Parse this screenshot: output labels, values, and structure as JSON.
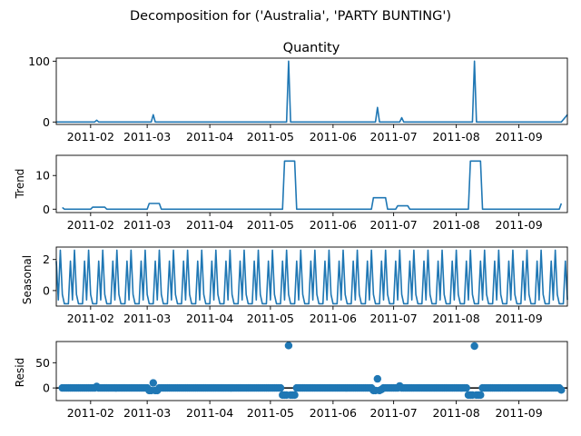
{
  "figure": {
    "suptitle": "Decomposition for ('Australia', 'PARTY BUNTING')"
  },
  "colors": {
    "line": "#1f77b4",
    "axis": "#000000",
    "background": "#ffffff"
  },
  "chart_data": [
    {
      "type": "line",
      "id": "observed",
      "title": "Quantity",
      "ylabel": "",
      "x_range": [
        0,
        253
      ],
      "ylim": [
        -4,
        105
      ],
      "yticks": [
        {
          "value": 0,
          "label": "0"
        },
        {
          "value": 100,
          "label": "100"
        }
      ],
      "x_ticks": [
        {
          "day": 17,
          "label": "2011-02"
        },
        {
          "day": 45,
          "label": "2011-03"
        },
        {
          "day": 76,
          "label": "2011-04"
        },
        {
          "day": 106,
          "label": "2011-05"
        },
        {
          "day": 137,
          "label": "2011-06"
        },
        {
          "day": 167,
          "label": "2011-07"
        },
        {
          "day": 198,
          "label": "2011-08"
        },
        {
          "day": 229,
          "label": "2011-09"
        }
      ],
      "points": [
        [
          0,
          0
        ],
        [
          19,
          0
        ],
        [
          20,
          3
        ],
        [
          21,
          0
        ],
        [
          47,
          0
        ],
        [
          48,
          12
        ],
        [
          49,
          0
        ],
        [
          114,
          0
        ],
        [
          115,
          100
        ],
        [
          116,
          0
        ],
        [
          158,
          0
        ],
        [
          159,
          24
        ],
        [
          160,
          0
        ],
        [
          170,
          0
        ],
        [
          171,
          7
        ],
        [
          172,
          0
        ],
        [
          206,
          0
        ],
        [
          207,
          100
        ],
        [
          208,
          0
        ],
        [
          250,
          0
        ],
        [
          253,
          12
        ]
      ]
    },
    {
      "type": "line",
      "id": "trend",
      "title": "",
      "ylabel": "Trend",
      "x_range": [
        0,
        253
      ],
      "ylim": [
        -1,
        16
      ],
      "yticks": [
        {
          "value": 0,
          "label": "0"
        },
        {
          "value": 10,
          "label": "10"
        }
      ],
      "x_ticks": [
        {
          "day": 17,
          "label": "2011-02"
        },
        {
          "day": 45,
          "label": "2011-03"
        },
        {
          "day": 76,
          "label": "2011-04"
        },
        {
          "day": 106,
          "label": "2011-05"
        },
        {
          "day": 137,
          "label": "2011-06"
        },
        {
          "day": 167,
          "label": "2011-07"
        },
        {
          "day": 198,
          "label": "2011-08"
        },
        {
          "day": 229,
          "label": "2011-09"
        }
      ],
      "points": [
        [
          3,
          0.5
        ],
        [
          4,
          0
        ],
        [
          17,
          0
        ],
        [
          18,
          0.6
        ],
        [
          24,
          0.6
        ],
        [
          25,
          0
        ],
        [
          45,
          0
        ],
        [
          46,
          1.7
        ],
        [
          51,
          1.7
        ],
        [
          52,
          0
        ],
        [
          112,
          0
        ],
        [
          113,
          14.3
        ],
        [
          118,
          14.3
        ],
        [
          119,
          0
        ],
        [
          156,
          0
        ],
        [
          157,
          3.4
        ],
        [
          163,
          3.4
        ],
        [
          164,
          0
        ],
        [
          168,
          0
        ],
        [
          169,
          1
        ],
        [
          174,
          1
        ],
        [
          175,
          0
        ],
        [
          204,
          0
        ],
        [
          205,
          14.3
        ],
        [
          210,
          14.3
        ],
        [
          211,
          0
        ],
        [
          249,
          0
        ],
        [
          250,
          1.7
        ]
      ]
    },
    {
      "type": "line",
      "id": "seasonal",
      "title": "",
      "ylabel": "Seasonal",
      "x_range": [
        0,
        253
      ],
      "ylim": [
        -1.0,
        2.8
      ],
      "yticks": [
        {
          "value": 0,
          "label": "0"
        },
        {
          "value": 2,
          "label": "2"
        }
      ],
      "x_ticks": [
        {
          "day": 17,
          "label": "2011-02"
        },
        {
          "day": 45,
          "label": "2011-03"
        },
        {
          "day": 76,
          "label": "2011-04"
        },
        {
          "day": 106,
          "label": "2011-05"
        },
        {
          "day": 137,
          "label": "2011-06"
        },
        {
          "day": 167,
          "label": "2011-07"
        },
        {
          "day": 198,
          "label": "2011-08"
        },
        {
          "day": 229,
          "label": "2011-09"
        }
      ],
      "period": 7,
      "start_day": 0,
      "pattern": [
        1.9,
        -0.6,
        2.6,
        -0.25,
        -0.85,
        -0.85,
        -0.85
      ]
    },
    {
      "type": "scatter",
      "id": "resid",
      "title": "",
      "ylabel": "Resid",
      "x_range": [
        0,
        253
      ],
      "ylim": [
        -25,
        92
      ],
      "yticks": [
        {
          "value": 0,
          "label": "0"
        },
        {
          "value": 50,
          "label": "50"
        }
      ],
      "x_ticks": [
        {
          "day": 17,
          "label": "2011-02"
        },
        {
          "day": 45,
          "label": "2011-03"
        },
        {
          "day": 76,
          "label": "2011-04"
        },
        {
          "day": 106,
          "label": "2011-05"
        },
        {
          "day": 137,
          "label": "2011-06"
        },
        {
          "day": 167,
          "label": "2011-07"
        },
        {
          "day": 198,
          "label": "2011-08"
        },
        {
          "day": 229,
          "label": "2011-09"
        }
      ],
      "baseline_value": 0,
      "x_start": 3,
      "x_end": 250,
      "default_value": 0,
      "points": [
        [
          20,
          3
        ],
        [
          46,
          -5
        ],
        [
          47,
          -5
        ],
        [
          48,
          10
        ],
        [
          49,
          -5
        ],
        [
          50,
          -5
        ],
        [
          112,
          -14
        ],
        [
          113,
          -14
        ],
        [
          114,
          -14
        ],
        [
          115,
          84
        ],
        [
          116,
          -14
        ],
        [
          117,
          -14
        ],
        [
          118,
          -14
        ],
        [
          157,
          -5
        ],
        [
          158,
          -5
        ],
        [
          159,
          18
        ],
        [
          160,
          -5
        ],
        [
          161,
          -3
        ],
        [
          170,
          4
        ],
        [
          204,
          -14
        ],
        [
          205,
          -14
        ],
        [
          206,
          -14
        ],
        [
          207,
          83
        ],
        [
          208,
          -14
        ],
        [
          209,
          -14
        ],
        [
          210,
          -14
        ],
        [
          250,
          -4
        ]
      ]
    }
  ]
}
